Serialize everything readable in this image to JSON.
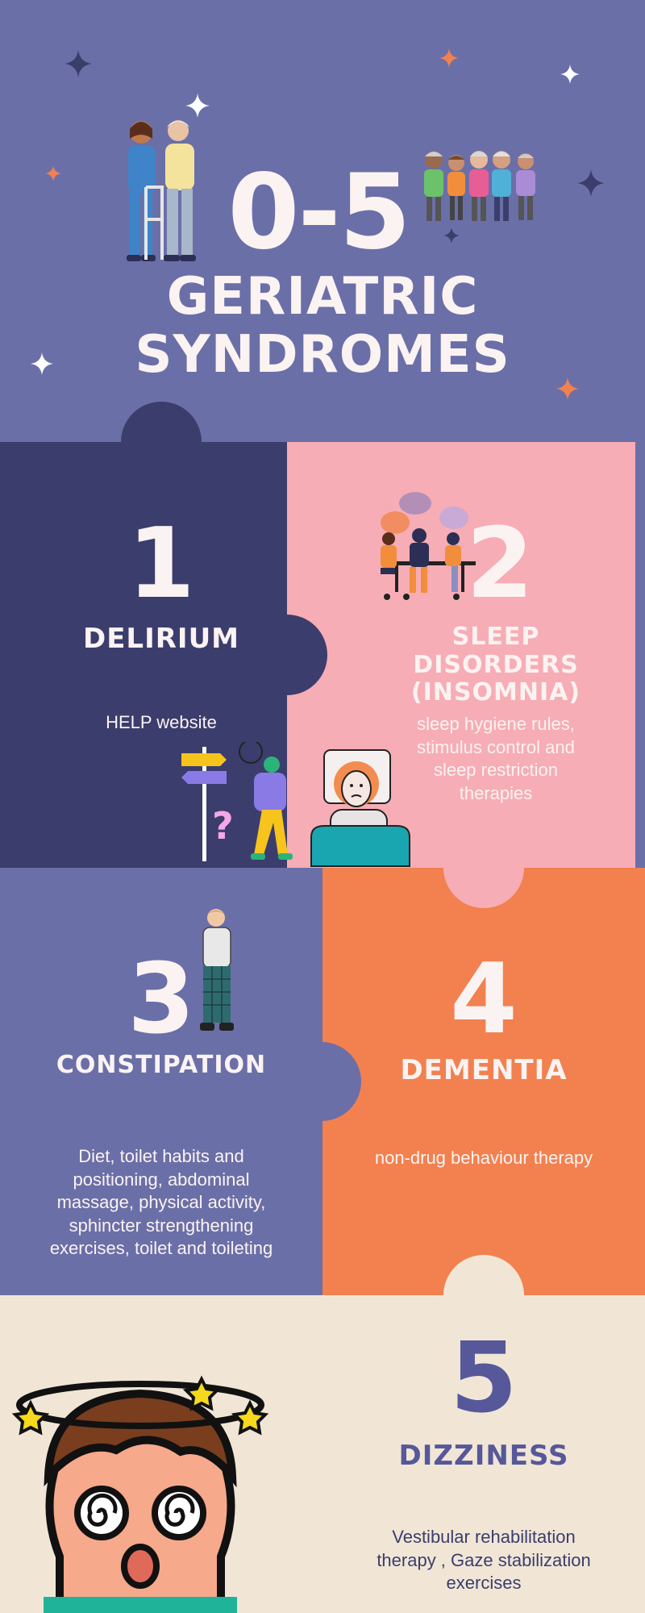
{
  "header": {
    "range": "0-5",
    "title_line1": "GERIATRIC",
    "title_line2": "SYNDROMES"
  },
  "colors": {
    "header_bg": "#6b6fa8",
    "navy": "#3b3d6d",
    "pink": "#f7adb5",
    "periwinkle": "#6b6fa8",
    "orange": "#f2814f",
    "cream": "#f1e6d6",
    "text_light": "#fbf3f2",
    "text_purple": "#56589a"
  },
  "syndromes": [
    {
      "number": "1",
      "name": "DELIRIUM",
      "treatment": "HELP website"
    },
    {
      "number": "2",
      "name": "SLEEP DISORDERS (INSOMNIA)",
      "treatment": "sleep hygiene rules, stimulus control and sleep restriction therapies"
    },
    {
      "number": "3",
      "name": "CONSTIPATION",
      "treatment": "Diet, toilet habits and positioning, abdominal massage, physical activity, sphincter strengthening exercises, toilet and toileting"
    },
    {
      "number": "4",
      "name": "DEMENTIA",
      "treatment": "non-drug behaviour therapy"
    },
    {
      "number": "5",
      "name": "DIZZINESS",
      "treatment": "Vestibular rehabilitation therapy , Gaze stabilization exercises"
    }
  ]
}
